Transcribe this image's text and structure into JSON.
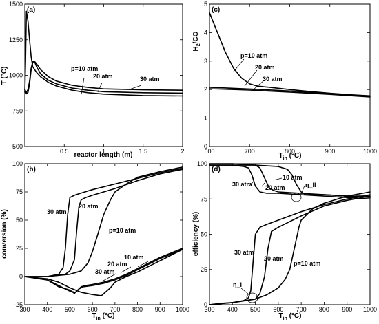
{
  "chart_data": [
    {
      "panel": "(a)",
      "type": "line",
      "xlabel": "reactor length (m)",
      "ylabel": "T (°C)",
      "xlim": [
        0,
        2
      ],
      "ylim": [
        500,
        1500
      ],
      "xticks": [
        0.5,
        1,
        1.5,
        2
      ],
      "xtick_labels": [
        "0.5",
        "1",
        "1.5",
        "2"
      ],
      "yticks": [
        500,
        750,
        1000,
        1250,
        1500
      ],
      "ytick_labels": [
        "500",
        "750",
        "1000",
        "1250",
        "1500"
      ],
      "series": [
        {
          "name": "p=10 atm",
          "x": [
            0,
            0.01,
            0.02,
            0.04,
            0.06,
            0.08,
            0.1,
            0.15,
            0.2,
            0.3,
            0.4,
            0.6,
            0.8,
            1.0,
            1.5,
            2.0
          ],
          "y": [
            880,
            1100,
            1450,
            1380,
            1250,
            1130,
            1060,
            1020,
            990,
            950,
            925,
            895,
            878,
            868,
            858,
            855
          ]
        },
        {
          "name": "20 atm",
          "x": [
            0,
            0.02,
            0.04,
            0.06,
            0.08,
            0.1,
            0.12,
            0.15,
            0.2,
            0.3,
            0.4,
            0.6,
            0.8,
            1.0,
            1.5,
            2.0
          ],
          "y": [
            900,
            880,
            900,
            960,
            1050,
            1095,
            1100,
            1060,
            1010,
            965,
            940,
            910,
            895,
            885,
            878,
            875
          ]
        },
        {
          "name": "30 atm",
          "x": [
            0,
            0.02,
            0.04,
            0.06,
            0.08,
            0.1,
            0.12,
            0.15,
            0.2,
            0.3,
            0.4,
            0.6,
            0.8,
            1.0,
            1.5,
            2.0
          ],
          "y": [
            900,
            870,
            880,
            940,
            1040,
            1090,
            1100,
            1080,
            1040,
            990,
            960,
            930,
            915,
            905,
            898,
            895
          ]
        }
      ],
      "annotations": [
        "p=10 atm",
        "20 atm",
        "30 atm"
      ]
    },
    {
      "panel": "(c)",
      "type": "line",
      "xlabel_main": "T",
      "xlabel_sub": "in",
      "xlabel_rest": " (°C)",
      "ylabel_main": "H",
      "ylabel_sub": "2",
      "ylabel_rest": "/CO",
      "xlim": [
        600,
        1000
      ],
      "ylim": [
        0,
        5
      ],
      "xticks": [
        600,
        700,
        800,
        900,
        1000
      ],
      "xtick_labels": [
        "600",
        "700",
        "800",
        "900",
        "1000"
      ],
      "yticks": [
        0,
        1,
        2,
        3,
        4,
        5
      ],
      "ytick_labels": [
        "0",
        "1",
        "2",
        "3",
        "4",
        "5"
      ],
      "series": [
        {
          "name": "p=10 atm",
          "x": [
            600,
            620,
            640,
            660,
            680,
            700,
            720,
            750,
            800,
            850,
            900,
            950,
            1000
          ],
          "y": [
            4.7,
            4.0,
            3.3,
            2.75,
            2.4,
            2.2,
            2.12,
            2.08,
            2.0,
            1.93,
            1.87,
            1.82,
            1.78
          ]
        },
        {
          "name": "20 atm",
          "x": [
            600,
            700,
            800,
            900,
            1000
          ],
          "y": [
            2.08,
            2.02,
            1.95,
            1.86,
            1.76
          ]
        },
        {
          "name": "30 atm",
          "x": [
            600,
            700,
            800,
            900,
            1000
          ],
          "y": [
            2.03,
            1.98,
            1.91,
            1.83,
            1.74
          ]
        }
      ],
      "annotations": [
        "p=10 atm",
        "20 atm",
        "30 atm"
      ]
    },
    {
      "panel": "(b)",
      "type": "line",
      "xlabel_main": "T",
      "xlabel_sub": "in",
      "xlabel_rest": " (°C)",
      "ylabel": "conversion (%)",
      "xlim": [
        300,
        1000
      ],
      "ylim": [
        -25,
        100
      ],
      "xticks": [
        300,
        400,
        500,
        600,
        700,
        800,
        900,
        1000
      ],
      "xtick_labels": [
        "300",
        "400",
        "500",
        "600",
        "700",
        "800",
        "900",
        "1000"
      ],
      "yticks": [
        -25,
        0,
        25,
        50,
        75,
        100
      ],
      "ytick_labels": [
        "-25",
        "0",
        "25",
        "50",
        "75",
        "100"
      ],
      "series": [
        {
          "name": "30 atm",
          "x": [
            300,
            400,
            450,
            470,
            480,
            490,
            500,
            520,
            550,
            600,
            700,
            800,
            900,
            1000
          ],
          "y": [
            0,
            0,
            2,
            8,
            25,
            55,
            70,
            72,
            74,
            77,
            82,
            87,
            92,
            96
          ]
        },
        {
          "name": "20 atm",
          "x": [
            300,
            400,
            480,
            500,
            520,
            530,
            540,
            550,
            570,
            600,
            700,
            800,
            900,
            1000
          ],
          "y": [
            0,
            0,
            2,
            5,
            15,
            40,
            62,
            68,
            70,
            72,
            78,
            85,
            91,
            95
          ]
        },
        {
          "name": "p=10 atm",
          "x": [
            300,
            400,
            500,
            550,
            580,
            600,
            620,
            650,
            680,
            700,
            750,
            800,
            900,
            1000
          ],
          "y": [
            0,
            0,
            2,
            5,
            12,
            22,
            35,
            55,
            68,
            75,
            82,
            88,
            93,
            97
          ]
        },
        {
          "name": "10 atm",
          "x": [
            300,
            400,
            450,
            500,
            550,
            600,
            640,
            680,
            700,
            750,
            800,
            850,
            900,
            950,
            1000
          ],
          "y": [
            0,
            -2,
            -5,
            -10,
            -14,
            -16,
            -17,
            -10,
            -5,
            0,
            4,
            9,
            14,
            19,
            24
          ]
        },
        {
          "name": "20 atm",
          "x": [
            300,
            400,
            450,
            500,
            525,
            550,
            570,
            600,
            650,
            700,
            750,
            800,
            850,
            900,
            950,
            1000
          ],
          "y": [
            0,
            -3,
            -8,
            -13,
            -14,
            -9,
            -8,
            -7,
            -5,
            -2,
            2,
            7,
            12,
            17,
            21,
            25
          ]
        },
        {
          "name": "30 atm",
          "x": [
            300,
            400,
            450,
            500,
            520,
            540,
            560,
            600,
            650,
            700,
            750,
            800,
            850,
            900,
            950,
            1000
          ],
          "y": [
            0,
            -3,
            -9,
            -12,
            -15,
            -11,
            -9,
            -8,
            -6,
            -3,
            1,
            6,
            11,
            16,
            20,
            24
          ]
        }
      ],
      "annotations": [
        "30 atm",
        "20 atm",
        "p=10 atm",
        "10 atm",
        "20 atm",
        "30 atm"
      ]
    },
    {
      "panel": "(d)",
      "type": "line",
      "xlabel_main": "T",
      "xlabel_sub": "in",
      "xlabel_rest": " (°C)",
      "ylabel": "efficiency (%)",
      "xlim": [
        300,
        1000
      ],
      "ylim": [
        0,
        100
      ],
      "xticks": [
        300,
        400,
        500,
        600,
        700,
        800,
        900,
        1000
      ],
      "xtick_labels": [
        "300",
        "400",
        "500",
        "600",
        "700",
        "800",
        "900",
        "1000"
      ],
      "yticks": [
        0,
        25,
        50,
        75,
        100
      ],
      "ytick_labels": [
        "0",
        "25",
        "50",
        "75",
        "100"
      ],
      "series": [
        {
          "name": "30 atm η_II",
          "x": [
            300,
            400,
            450,
            470,
            485,
            500,
            520,
            550,
            600,
            700,
            800,
            900,
            1000
          ],
          "y": [
            99,
            99,
            98,
            97,
            92,
            84,
            80,
            79,
            79,
            78,
            77,
            76,
            75
          ]
        },
        {
          "name": "20 atm η_II",
          "x": [
            300,
            400,
            500,
            520,
            540,
            560,
            580,
            600,
            700,
            800,
            900,
            1000
          ],
          "y": [
            99,
            99,
            99,
            97,
            90,
            83,
            81,
            80,
            79,
            78,
            77,
            76
          ]
        },
        {
          "name": "10 atm η_II",
          "x": [
            300,
            400,
            500,
            600,
            640,
            660,
            680,
            700,
            720,
            750,
            800,
            900,
            1000
          ],
          "y": [
            100,
            100,
            99,
            98,
            96,
            92,
            85,
            80,
            78,
            78,
            78,
            77,
            77
          ]
        },
        {
          "name": "30 atm η_I",
          "x": [
            300,
            350,
            400,
            450,
            470,
            480,
            490,
            500,
            520,
            550,
            600,
            700,
            800,
            900,
            1000
          ],
          "y": [
            0,
            1,
            1.5,
            3,
            5,
            10,
            30,
            50,
            55,
            57,
            60,
            66,
            71,
            75,
            78
          ]
        },
        {
          "name": "20 atm η_I",
          "x": [
            300,
            400,
            500,
            520,
            540,
            555,
            570,
            600,
            700,
            800,
            900,
            1000
          ],
          "y": [
            0,
            1.5,
            4,
            8,
            20,
            40,
            52,
            55,
            63,
            70,
            74,
            77
          ]
        },
        {
          "name": "p=10 atm η_I",
          "x": [
            300,
            400,
            500,
            550,
            600,
            630,
            650,
            670,
            690,
            700,
            750,
            800,
            900,
            1000
          ],
          "y": [
            0,
            1.5,
            4,
            7,
            12,
            18,
            25,
            40,
            55,
            60,
            68,
            72,
            77,
            80
          ]
        }
      ],
      "annotations": [
        "10 atm",
        "30 atm",
        "20 atm",
        "η_II",
        "30 atm",
        "20 atm",
        "p=10 atm",
        "η_I"
      ]
    }
  ]
}
